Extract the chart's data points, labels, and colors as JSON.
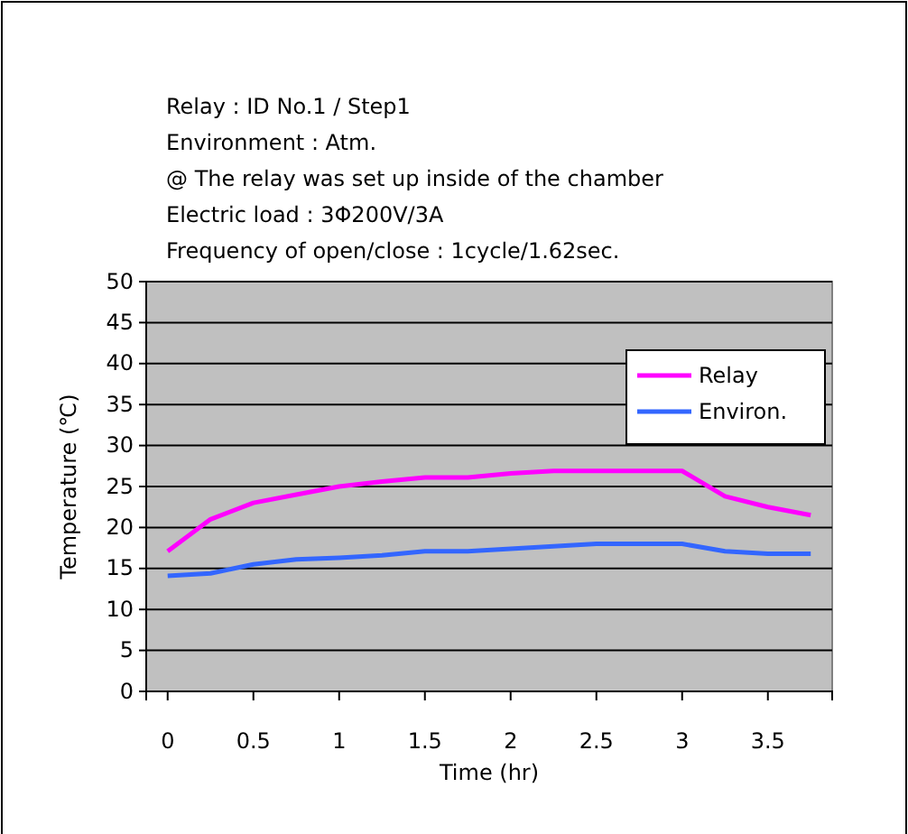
{
  "chart_data": {
    "type": "line",
    "annotations": [
      "Relay : ID No.1 / Step1",
      "Environment : Atm.",
      "@ The relay was set up inside of the chamber",
      "Electric load : 3Φ200V/3A",
      "Frequency of open/close : 1cycle/1.62sec."
    ],
    "xlabel": "Time (hr)",
    "ylabel": "Temperature (℃)",
    "x": [
      0,
      0.25,
      0.5,
      0.75,
      1,
      1.25,
      1.5,
      1.75,
      2,
      2.25,
      2.5,
      2.75,
      3,
      3.25,
      3.5,
      3.75
    ],
    "series": [
      {
        "name": "Relay",
        "color": "#ff00ff",
        "values": [
          17.1,
          21,
          23,
          24,
          25,
          25.6,
          26.1,
          26.1,
          26.6,
          26.9,
          26.9,
          26.9,
          26.9,
          23.8,
          22.5,
          21.5
        ]
      },
      {
        "name": "Environ.",
        "color": "#3366ff",
        "values": [
          14.1,
          14.4,
          15.5,
          16.1,
          16.3,
          16.6,
          17.1,
          17.1,
          17.4,
          17.7,
          18,
          18,
          18,
          17.1,
          16.8,
          16.8
        ]
      }
    ],
    "xlim": [
      -0.125,
      3.875
    ],
    "xticks": [
      0,
      0.5,
      1,
      1.5,
      2,
      2.5,
      3,
      3.5
    ],
    "ylim": [
      0,
      50
    ],
    "yticks": [
      0,
      5,
      10,
      15,
      20,
      25,
      30,
      35,
      40,
      45,
      50
    ],
    "grid": "y",
    "legend": "top right",
    "marker": "none",
    "line_style": "solid"
  }
}
